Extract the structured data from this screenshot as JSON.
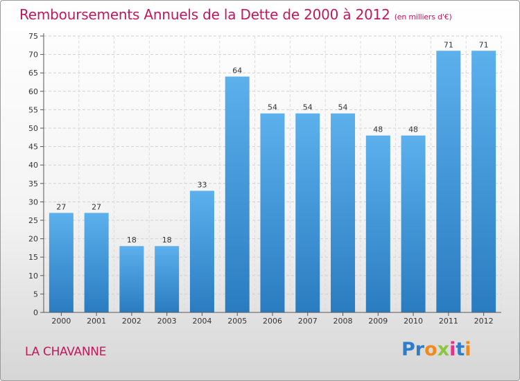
{
  "title": "Remboursements Annuels de la Dette de 2000 à 2012",
  "unit": "(en milliers d'€)",
  "commune": "LA CHAVANNE",
  "logo": {
    "text": "Proxiti",
    "letters": [
      {
        "ch": "P",
        "color": "#2e7dc8"
      },
      {
        "ch": "r",
        "color": "#2e7dc8"
      },
      {
        "ch": "o",
        "color": "#f08a1c"
      },
      {
        "ch": "x",
        "color": "#8cc63f"
      },
      {
        "ch": "i",
        "color": "#e2328c"
      },
      {
        "ch": "t",
        "color": "#2e7dc8"
      },
      {
        "ch": "i",
        "color": "#f08a1c"
      }
    ]
  },
  "chart_data": {
    "type": "bar",
    "title": "Remboursements Annuels de la Dette de 2000 à 2012",
    "xlabel": "",
    "ylabel": "(en milliers d'€)",
    "categories": [
      "2000",
      "2001",
      "2002",
      "2003",
      "2004",
      "2005",
      "2006",
      "2007",
      "2008",
      "2009",
      "2010",
      "2011",
      "2012"
    ],
    "values": [
      27,
      27,
      18,
      18,
      33,
      64,
      54,
      54,
      54,
      48,
      48,
      71,
      71
    ],
    "ylim": [
      0,
      75
    ],
    "yticks": [
      0,
      5,
      10,
      15,
      20,
      25,
      30,
      35,
      40,
      45,
      50,
      55,
      60,
      65,
      70,
      75
    ],
    "grid": true,
    "bar_color": "#3f95d8"
  }
}
